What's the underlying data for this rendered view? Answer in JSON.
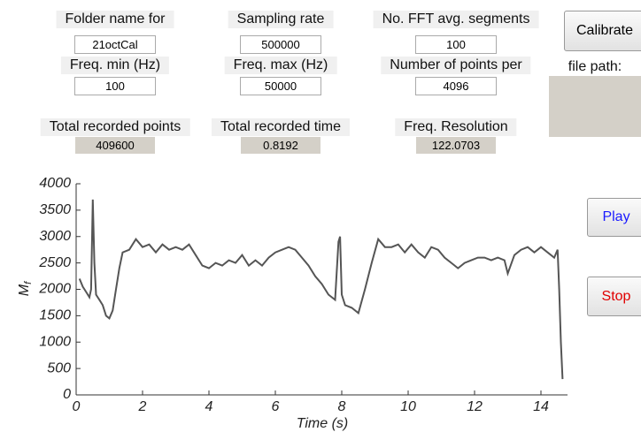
{
  "fields": [
    {
      "label": "Folder name for",
      "value": "21octCal"
    },
    {
      "label": "Sampling rate",
      "value": "500000"
    },
    {
      "label": "No. FFT avg. segments",
      "value": "100"
    },
    {
      "label": "Freq. min (Hz)",
      "value": "100"
    },
    {
      "label": "Freq. max (Hz)",
      "value": "50000"
    },
    {
      "label": "Number of points per",
      "value": "4096"
    },
    {
      "label": "Total recorded points",
      "value": "409600"
    },
    {
      "label": "Total recorded time",
      "value": "0.8192"
    },
    {
      "label": "Freq. Resolution",
      "value": "122.0703"
    }
  ],
  "buttons": {
    "calibrate": "Calibrate",
    "play": "Play",
    "stop": "Stop"
  },
  "file_path_label": "file path:",
  "chart_data": {
    "type": "line",
    "xlabel": "Time (s)",
    "ylabel_main": "M",
    "ylabel_sub": "f",
    "color": "#555555",
    "x": [
      0.1,
      0.2,
      0.3,
      0.4,
      0.45,
      0.5,
      0.55,
      0.6,
      0.7,
      0.8,
      0.9,
      1.0,
      1.1,
      1.2,
      1.3,
      1.4,
      1.6,
      1.8,
      2.0,
      2.2,
      2.4,
      2.6,
      2.8,
      3.0,
      3.2,
      3.4,
      3.6,
      3.8,
      4.0,
      4.2,
      4.4,
      4.6,
      4.8,
      5.0,
      5.2,
      5.4,
      5.6,
      5.8,
      6.0,
      6.2,
      6.4,
      6.6,
      6.8,
      7.0,
      7.2,
      7.4,
      7.6,
      7.8,
      7.9,
      7.95,
      8.0,
      8.1,
      8.3,
      8.5,
      8.7,
      8.9,
      9.1,
      9.3,
      9.5,
      9.7,
      9.9,
      10.1,
      10.3,
      10.5,
      10.7,
      10.9,
      11.1,
      11.3,
      11.5,
      11.7,
      11.9,
      12.1,
      12.3,
      12.5,
      12.7,
      12.9,
      13.0,
      13.2,
      13.4,
      13.6,
      13.8,
      14.0,
      14.2,
      14.4,
      14.5,
      14.55,
      14.6,
      14.65
    ],
    "values": [
      2200,
      2050,
      1950,
      1850,
      2000,
      3700,
      2500,
      1900,
      1800,
      1700,
      1500,
      1450,
      1600,
      2000,
      2400,
      2700,
      2750,
      2950,
      2800,
      2850,
      2700,
      2850,
      2750,
      2800,
      2750,
      2850,
      2650,
      2450,
      2400,
      2500,
      2450,
      2550,
      2500,
      2650,
      2450,
      2550,
      2450,
      2600,
      2700,
      2750,
      2800,
      2750,
      2600,
      2450,
      2250,
      2100,
      1900,
      1800,
      2900,
      3000,
      1900,
      1700,
      1650,
      1550,
      2000,
      2500,
      2950,
      2800,
      2800,
      2850,
      2700,
      2850,
      2700,
      2600,
      2800,
      2750,
      2600,
      2500,
      2400,
      2500,
      2550,
      2600,
      2600,
      2550,
      2600,
      2550,
      2300,
      2650,
      2750,
      2800,
      2700,
      2800,
      2700,
      2600,
      2750,
      2000,
      1000,
      300
    ],
    "xlim": [
      0,
      14.8
    ],
    "ylim": [
      0,
      4000
    ],
    "xticks": [
      0,
      2,
      4,
      6,
      8,
      10,
      12,
      14
    ],
    "yticks": [
      0,
      500,
      1000,
      1500,
      2000,
      2500,
      3000,
      3500,
      4000
    ]
  }
}
